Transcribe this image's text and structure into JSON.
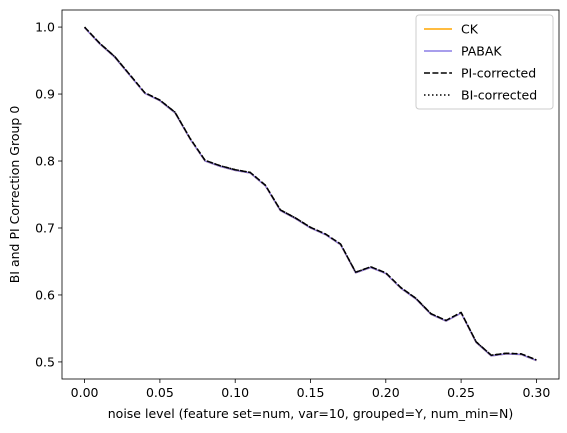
{
  "chart_data": {
    "type": "line",
    "title": "",
    "xlabel": "noise level (feature set=num, var=10, grouped=Y, num_min=N)",
    "ylabel": "BI and PI Correction Group 0",
    "xlim": [
      -0.015,
      0.315
    ],
    "ylim": [
      0.4745,
      1.0255
    ],
    "xticks": [
      0.0,
      0.05,
      0.1,
      0.15,
      0.2,
      0.25,
      0.3
    ],
    "xtick_labels": [
      "0.00",
      "0.05",
      "0.10",
      "0.15",
      "0.20",
      "0.25",
      "0.30"
    ],
    "yticks": [
      0.5,
      0.6,
      0.7,
      0.8,
      0.9,
      1.0
    ],
    "ytick_labels": [
      "0.5",
      "0.6",
      "0.7",
      "0.8",
      "0.9",
      "1.0"
    ],
    "grid": false,
    "legend_position": "top-right",
    "x": [
      0.0,
      0.01,
      0.02,
      0.03,
      0.04,
      0.05,
      0.06,
      0.07,
      0.08,
      0.09,
      0.1,
      0.11,
      0.12,
      0.13,
      0.14,
      0.15,
      0.16,
      0.17,
      0.18,
      0.19,
      0.2,
      0.21,
      0.22,
      0.23,
      0.24,
      0.25,
      0.26,
      0.27,
      0.28,
      0.29,
      0.3
    ],
    "series": [
      {
        "name": "CK",
        "color": "#ffa500",
        "style": "solid",
        "values": [
          0.999,
          0.975,
          0.955,
          0.928,
          0.901,
          0.89,
          0.872,
          0.833,
          0.8,
          0.792,
          0.786,
          0.782,
          0.763,
          0.726,
          0.714,
          0.7,
          0.69,
          0.675,
          0.633,
          0.641,
          0.632,
          0.61,
          0.594,
          0.571,
          0.561,
          0.573,
          0.529,
          0.509,
          0.512,
          0.511,
          0.502
        ]
      },
      {
        "name": "PABAK",
        "color": "#8c7ee6",
        "style": "solid",
        "values": [
          0.999,
          0.975,
          0.955,
          0.928,
          0.901,
          0.89,
          0.872,
          0.833,
          0.8,
          0.792,
          0.786,
          0.782,
          0.763,
          0.726,
          0.714,
          0.7,
          0.69,
          0.675,
          0.633,
          0.641,
          0.632,
          0.61,
          0.594,
          0.571,
          0.561,
          0.573,
          0.529,
          0.509,
          0.512,
          0.511,
          0.502
        ]
      },
      {
        "name": "PI-corrected",
        "color": "#000000",
        "style": "dashed",
        "values": [
          1.0,
          0.976,
          0.956,
          0.929,
          0.902,
          0.891,
          0.873,
          0.834,
          0.801,
          0.793,
          0.787,
          0.783,
          0.764,
          0.727,
          0.715,
          0.701,
          0.691,
          0.676,
          0.634,
          0.642,
          0.633,
          0.611,
          0.595,
          0.572,
          0.562,
          0.574,
          0.53,
          0.51,
          0.513,
          0.512,
          0.503
        ]
      },
      {
        "name": "BI-corrected",
        "color": "#000000",
        "style": "dotted",
        "values": [
          1.0,
          0.976,
          0.956,
          0.929,
          0.902,
          0.891,
          0.873,
          0.834,
          0.801,
          0.793,
          0.787,
          0.783,
          0.764,
          0.727,
          0.715,
          0.701,
          0.691,
          0.676,
          0.634,
          0.642,
          0.633,
          0.611,
          0.595,
          0.572,
          0.562,
          0.574,
          0.53,
          0.51,
          0.513,
          0.512,
          0.503
        ]
      }
    ]
  }
}
